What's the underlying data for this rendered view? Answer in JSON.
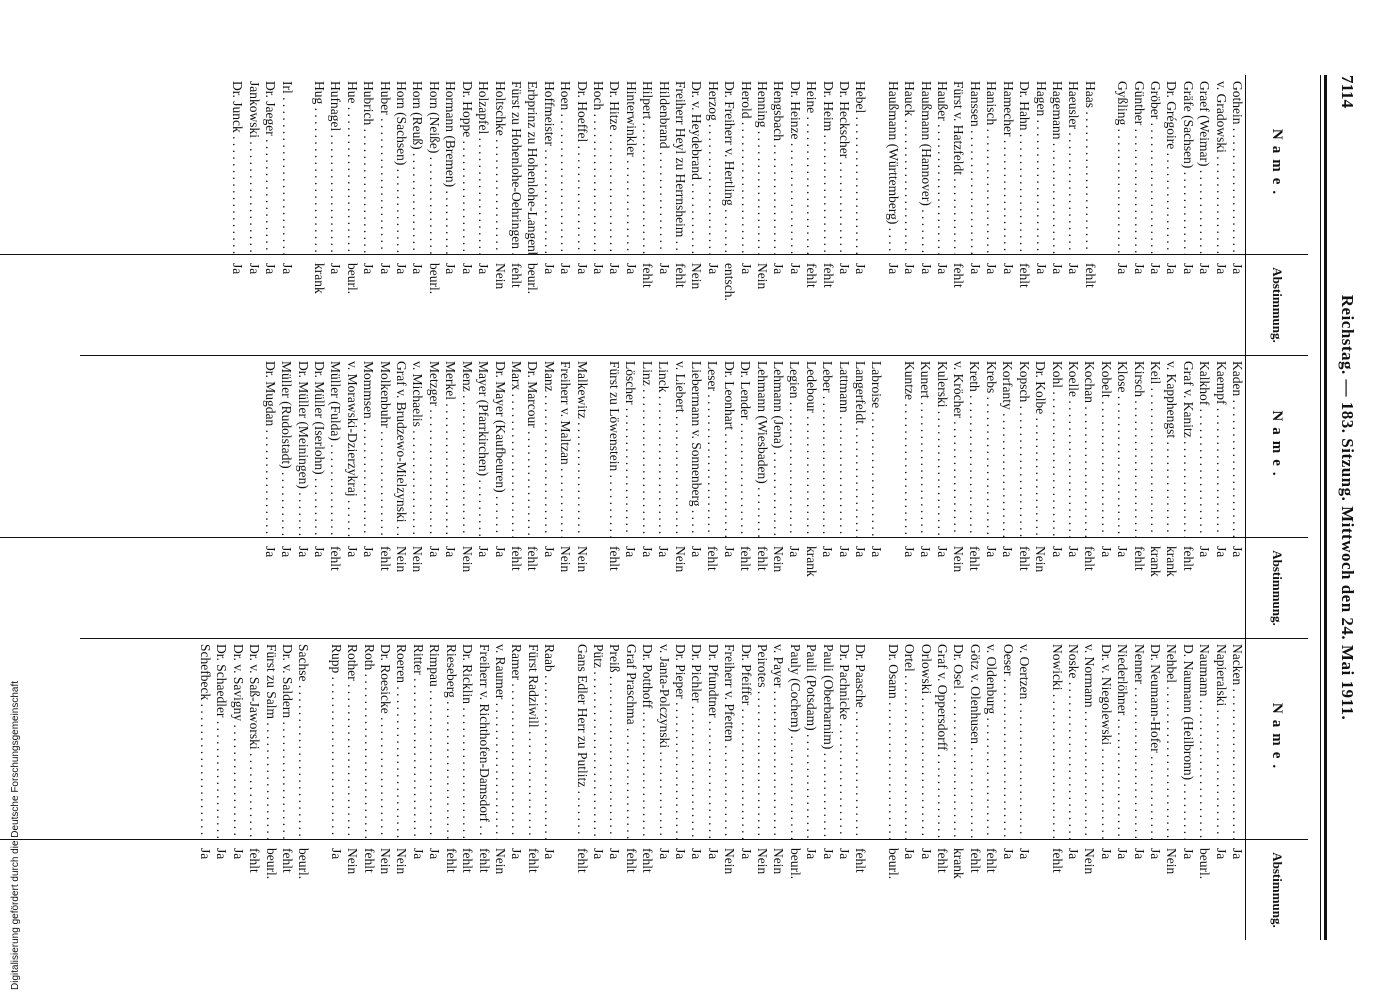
{
  "header": {
    "page_number": "7114",
    "title": "Reichstag. — 183. Sitzung. Mittwoch den 24. Mai 1911."
  },
  "table_headers": {
    "name": "Name.",
    "vote": "Abstimmung."
  },
  "side_note": "Digitalisierung gefördert durch die Deutsche Forschungsgemeinschaft",
  "columns": [
    {
      "groups": [
        {
          "rows": [
            {
              "name": "Gothein",
              "vote": "Ja"
            },
            {
              "name": "v. Gradowski",
              "vote": "Ja"
            },
            {
              "name": "Graef (Weimar)",
              "vote": "Ja"
            },
            {
              "name": "Gräfe (Sachsen)",
              "vote": "Ja"
            },
            {
              "name": "Dr. Grégoire",
              "vote": "Ja"
            },
            {
              "name": "Gröber",
              "vote": "Ja"
            },
            {
              "name": "Günther",
              "vote": "Ja"
            },
            {
              "name": "Gyßling",
              "vote": "Ja"
            }
          ]
        },
        {
          "rows": [
            {
              "name": "Haas",
              "vote": "fehlt"
            },
            {
              "name": "Haeusler",
              "vote": "Ja"
            },
            {
              "name": "Hagemann",
              "vote": "Ja"
            },
            {
              "name": "Hagen",
              "vote": "Ja"
            },
            {
              "name": "Dr. Hahn",
              "vote": "fehlt"
            },
            {
              "name": "Hamecher",
              "vote": "Ja"
            },
            {
              "name": "Hanisch",
              "vote": "Ja"
            },
            {
              "name": "Hanssen",
              "vote": "Ja"
            },
            {
              "name": "Fürst v. Hatzfeldt",
              "vote": "fehlt"
            },
            {
              "name": "Haußer",
              "vote": "Ja"
            },
            {
              "name": "Haußmann (Hannover)",
              "vote": "Ja"
            },
            {
              "name": "Hauck",
              "vote": "Ja"
            },
            {
              "name": "Haußmann (Württemberg)",
              "vote": "Ja"
            }
          ]
        },
        {
          "rows": [
            {
              "name": "Hebel",
              "vote": "Ja"
            },
            {
              "name": "Dr. Heckscher",
              "vote": "Ja"
            },
            {
              "name": "Dr. Heim",
              "vote": "fehlt"
            },
            {
              "name": "Heine",
              "vote": "fehlt"
            },
            {
              "name": "Dr. Heinze",
              "vote": "Ja"
            },
            {
              "name": "Hengsbach",
              "vote": "Ja"
            },
            {
              "name": "Henning",
              "vote": "Nein"
            },
            {
              "name": "Herold",
              "vote": "Ja"
            },
            {
              "name": "Dr. Freiherr v. Hertling",
              "vote": "entsch."
            },
            {
              "name": "Herzog",
              "vote": "Ja"
            },
            {
              "name": "Dr. v. Heydebrand",
              "vote": "Nein"
            },
            {
              "name": "Freiherr Heyl zu Herrnsheim",
              "vote": "fehlt"
            },
            {
              "name": "Hildenbrand",
              "vote": "Ja"
            },
            {
              "name": "Hilpert",
              "vote": "fehlt"
            },
            {
              "name": "Hinterwinkler",
              "vote": "Ja"
            },
            {
              "name": "Dr. Hitze",
              "vote": "Ja"
            },
            {
              "name": "Hoch",
              "vote": "Ja"
            },
            {
              "name": "Dr. Hoeffel",
              "vote": "Ja"
            },
            {
              "name": "Hoen",
              "vote": "Ja"
            },
            {
              "name": "Hoffmeister",
              "vote": "Ja"
            },
            {
              "name": "Erbprinz zu Hohenlohe-Langenburg",
              "vote": "beurl."
            },
            {
              "name": "Fürst zu Hohenlohe-Oehringen",
              "vote": "fehlt"
            },
            {
              "name": "Holtschke",
              "vote": "Nein"
            },
            {
              "name": "Holzapfel",
              "vote": "Ja"
            },
            {
              "name": "Dr. Hoppe",
              "vote": "Ja"
            },
            {
              "name": "Hormann (Bremen)",
              "vote": "Ja"
            },
            {
              "name": "Horn (Neiße)",
              "vote": "beurl."
            },
            {
              "name": "Horn (Reuß)",
              "vote": "Ja"
            },
            {
              "name": "Horn (Sachsen)",
              "vote": "Ja"
            },
            {
              "name": "Huber",
              "vote": "Ja"
            },
            {
              "name": "Hubrich",
              "vote": "Ja"
            },
            {
              "name": "Hue",
              "vote": "beurl."
            },
            {
              "name": "Hufnagel",
              "vote": "Ja"
            },
            {
              "name": "Hug",
              "vote": "krank"
            }
          ]
        },
        {
          "rows": [
            {
              "name": "Irl",
              "vote": "Ja"
            },
            {
              "name": "Dr. Jaeger",
              "vote": "Ja"
            },
            {
              "name": "Jankowski",
              "vote": "Ja"
            },
            {
              "name": "Dr. Junck",
              "vote": "Ja"
            }
          ]
        }
      ]
    },
    {
      "groups": [
        {
          "rows": [
            {
              "name": "Kaden",
              "vote": "Ja"
            },
            {
              "name": "Kaempf",
              "vote": "Ja"
            },
            {
              "name": "Kalkhof",
              "vote": "Ja"
            },
            {
              "name": "Graf v. Kanitz",
              "vote": "fehlt"
            },
            {
              "name": "v. Kapphengst",
              "vote": "krank"
            },
            {
              "name": "Keil",
              "vote": "krank"
            },
            {
              "name": "Kirsch",
              "vote": "fehlt"
            },
            {
              "name": "Klose",
              "vote": "Ja"
            },
            {
              "name": "Kobelt",
              "vote": "Ja"
            },
            {
              "name": "Kochan",
              "vote": "fehlt"
            },
            {
              "name": "Koelle",
              "vote": "Ja"
            },
            {
              "name": "Kohl",
              "vote": "Ja"
            },
            {
              "name": "Dr. Kolbe",
              "vote": "Nein"
            },
            {
              "name": "Kopsch",
              "vote": "fehlt"
            },
            {
              "name": "Korfanty",
              "vote": "Ja"
            },
            {
              "name": "Krebs",
              "vote": "Ja"
            },
            {
              "name": "Kreth",
              "vote": "fehlt"
            },
            {
              "name": "v. Kröcher",
              "vote": "Nein"
            },
            {
              "name": "Kulerski",
              "vote": "Ja"
            },
            {
              "name": "Kunert",
              "vote": "Ja"
            },
            {
              "name": "Kuntze",
              "vote": "Ja"
            }
          ]
        },
        {
          "rows": [
            {
              "name": "Labroise",
              "vote": "Ja"
            },
            {
              "name": "Langerfeldt",
              "vote": "Ja"
            },
            {
              "name": "Lattmann",
              "vote": "Ja"
            },
            {
              "name": "Leber",
              "vote": "Ja"
            },
            {
              "name": "Ledebour",
              "vote": "krank"
            },
            {
              "name": "Legien",
              "vote": "Ja"
            },
            {
              "name": "Lehmann (Jena)",
              "vote": "Nein"
            },
            {
              "name": "Lehmann (Wiesbaden)",
              "vote": "fehlt"
            },
            {
              "name": "Dr. Lender",
              "vote": "fehlt"
            },
            {
              "name": "Dr. Leonhart",
              "vote": "Ja"
            },
            {
              "name": "Leser",
              "vote": "fehlt"
            },
            {
              "name": "Liebermann v. Sonnenberg",
              "vote": "Ja"
            },
            {
              "name": "v. Liebert",
              "vote": "Nein"
            },
            {
              "name": "Linck",
              "vote": "Ja"
            },
            {
              "name": "Linz",
              "vote": "Ja"
            },
            {
              "name": "Löscher",
              "vote": "Ja"
            },
            {
              "name": "Fürst zu Löwenstein",
              "vote": "fehlt"
            }
          ]
        },
        {
          "rows": [
            {
              "name": "Malkewitz",
              "vote": "Nein"
            },
            {
              "name": "Freiherr v. Maltzan",
              "vote": "Nein"
            },
            {
              "name": "Manz",
              "vote": "Ja"
            },
            {
              "name": "Dr. Marcour",
              "vote": "fehlt"
            },
            {
              "name": "Marx",
              "vote": "fehlt"
            },
            {
              "name": "Dr. Mayer (Kaufbeuren)",
              "vote": "Ja"
            },
            {
              "name": "Mayer (Pfarrkirchen)",
              "vote": "Ja"
            },
            {
              "name": "Menz",
              "vote": "Nein"
            },
            {
              "name": "Merkel",
              "vote": "Ja"
            },
            {
              "name": "Metzger",
              "vote": "Ja"
            },
            {
              "name": "v. Michaelis",
              "vote": "Nein"
            },
            {
              "name": "Graf v. Brudzewo-Mielzynski",
              "vote": "Nein"
            },
            {
              "name": "Molkenbuhr",
              "vote": "fehlt"
            },
            {
              "name": "Mommsen",
              "vote": "Ja"
            },
            {
              "name": "v. Morawski-Dzierzykraj",
              "vote": "Ja"
            },
            {
              "name": "Müller (Fulda)",
              "vote": "fehlt"
            },
            {
              "name": "Dr. Müller (Iserlohn)",
              "vote": "Ja"
            },
            {
              "name": "Dr. Müller (Meiningen)",
              "vote": "Ja"
            },
            {
              "name": "Müller (Rudolstadt)",
              "vote": "Ja"
            },
            {
              "name": "Dr. Mugdan",
              "vote": "Ja"
            }
          ]
        }
      ]
    },
    {
      "groups": [
        {
          "rows": [
            {
              "name": "Nacken",
              "vote": "Ja"
            },
            {
              "name": "Napieralski",
              "vote": "Ja"
            },
            {
              "name": "Naumann",
              "vote": "beurl."
            },
            {
              "name": "D. Naumann (Heilbronn)",
              "vote": "Ja"
            },
            {
              "name": "Nehbel",
              "vote": "Nein"
            },
            {
              "name": "Dr. Neumann-Hofer",
              "vote": "Ja"
            },
            {
              "name": "Nenner",
              "vote": "Ja"
            },
            {
              "name": "Niederlöhner",
              "vote": "Ja"
            },
            {
              "name": "Dr. v. Niegolewski",
              "vote": "Ja"
            },
            {
              "name": "v. Normann",
              "vote": "Nein"
            },
            {
              "name": "Noske",
              "vote": "Ja"
            },
            {
              "name": "Nowicki",
              "vote": "fehlt"
            }
          ]
        },
        {
          "rows": [
            {
              "name": "v. Oertzen",
              "vote": "Ja"
            },
            {
              "name": "Oeser",
              "vote": "Ja"
            },
            {
              "name": "v. Oldenburg",
              "vote": "fehlt"
            },
            {
              "name": "Götz v. Olenhusen",
              "vote": "fehlt"
            },
            {
              "name": "Dr. Osel",
              "vote": "krank"
            },
            {
              "name": "Graf v. Oppersdorff",
              "vote": "fehlt"
            },
            {
              "name": "Orlowski",
              "vote": "Ja"
            },
            {
              "name": "Ortel",
              "vote": "Ja"
            },
            {
              "name": "Dr. Osann",
              "vote": "beurl."
            }
          ]
        },
        {
          "rows": [
            {
              "name": "Dr. Paasche",
              "vote": "fehlt"
            },
            {
              "name": "Dr. Pachnicke",
              "vote": "Ja"
            },
            {
              "name": "Pauli (Oberbarnim)",
              "vote": "Ja"
            },
            {
              "name": "Pauli (Potsdam)",
              "vote": "Ja"
            },
            {
              "name": "Pauly (Cochem)",
              "vote": "beurl."
            },
            {
              "name": "v. Payer",
              "vote": "Nein"
            },
            {
              "name": "Peirotes",
              "vote": "Nein"
            },
            {
              "name": "Dr. Pfeiffer",
              "vote": "Ja"
            },
            {
              "name": "Freiherr v. Pfetten",
              "vote": "Nein"
            },
            {
              "name": "Dr. Pfundtner",
              "vote": "Ja"
            },
            {
              "name": "Dr. Pichler",
              "vote": "Ja"
            },
            {
              "name": "Dr. Pieper",
              "vote": "Ja"
            },
            {
              "name": "v. Janta-Polczynski",
              "vote": "Ja"
            },
            {
              "name": "Dr. Potthoff",
              "vote": "fehlt"
            },
            {
              "name": "Graf Praschma",
              "vote": "fehlt"
            },
            {
              "name": "Preiß",
              "vote": "Ja"
            },
            {
              "name": "Pütz",
              "vote": "Ja"
            },
            {
              "name": "Gans Edler Herr zu Putlitz",
              "vote": "fehlt"
            }
          ]
        },
        {
          "rows": [
            {
              "name": "Raab",
              "vote": "Ja"
            },
            {
              "name": "Fürst Radziwill",
              "vote": "fehlt"
            },
            {
              "name": "Ramer",
              "vote": "Ja"
            },
            {
              "name": "v. Raumer",
              "vote": "Nein"
            },
            {
              "name": "Freiherr v. Richthofen-Damsdorf",
              "vote": "fehlt"
            },
            {
              "name": "Dr. Ricklin",
              "vote": "fehlt"
            },
            {
              "name": "Rieseberg",
              "vote": "fehlt"
            },
            {
              "name": "Rimpau",
              "vote": "Ja"
            },
            {
              "name": "Ritter",
              "vote": "Ja"
            },
            {
              "name": "Roeren",
              "vote": "Nein"
            },
            {
              "name": "Dr. Roesicke",
              "vote": "Nein"
            },
            {
              "name": "Roth",
              "vote": "fehlt"
            },
            {
              "name": "Rother",
              "vote": "Nein"
            },
            {
              "name": "Rupp",
              "vote": "Ja"
            }
          ]
        },
        {
          "rows": [
            {
              "name": "Sachse",
              "vote": "beurl."
            },
            {
              "name": "Dr. v. Saldern",
              "vote": "fehlt"
            },
            {
              "name": "Fürst zu Salm",
              "vote": "beurl."
            },
            {
              "name": "Dr. v. Saß-Jaworski",
              "vote": "fehlt"
            },
            {
              "name": "Dr. v. Savigny",
              "vote": "Ja"
            },
            {
              "name": "Dr. Schaedler",
              "vote": "Ja"
            },
            {
              "name": "Schefbeck",
              "vote": "Ja"
            }
          ]
        }
      ]
    }
  ]
}
